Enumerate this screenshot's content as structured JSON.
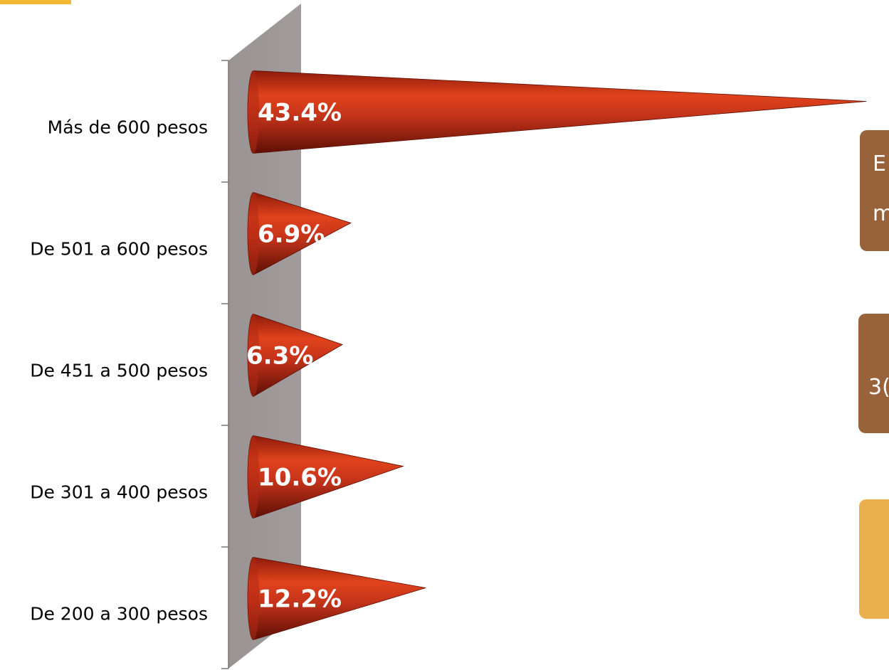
{
  "chart_data": {
    "type": "bar",
    "orientation": "horizontal",
    "bar_shape": "cone",
    "categories": [
      "Más de 600 pesos",
      "De 501 a 600 pesos",
      "De 451 a 500 pesos",
      "De 301 a 400 pesos",
      "De 200 a 300 pesos"
    ],
    "values": [
      43.4,
      6.9,
      6.3,
      10.6,
      12.2
    ],
    "value_labels": [
      "43.4%",
      "6.9%",
      "6.3%",
      "10.6%",
      "12.2%"
    ],
    "xlim": [
      0,
      45
    ],
    "unit": "%",
    "grid": false,
    "legend": "none",
    "bar_color": "#c0301a"
  },
  "callouts": [
    {
      "lines": [
        "E",
        "m"
      ],
      "color": "#98623a"
    },
    {
      "lines": [
        "",
        "3("
      ],
      "color": "#98623a"
    },
    {
      "lines": [],
      "color": "#ebb04e"
    }
  ],
  "colors": {
    "wall": "#9e9898",
    "wall_side": "#6f6a6a",
    "accent": "#f2b830"
  }
}
